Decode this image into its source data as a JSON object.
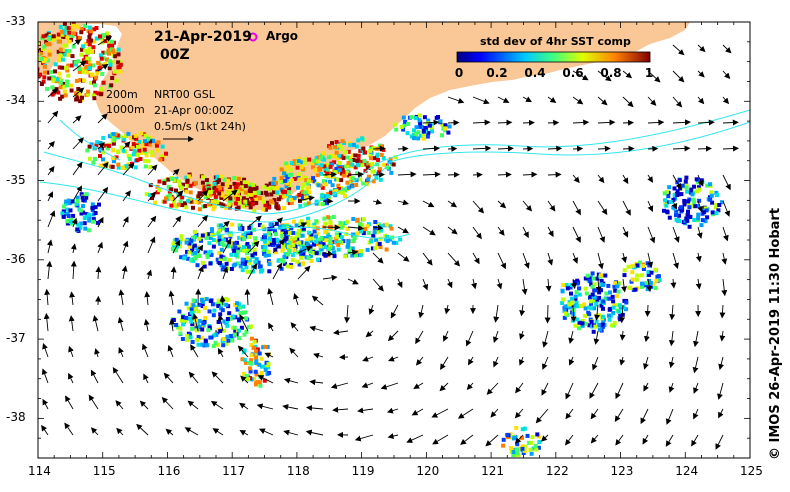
{
  "title": {
    "date": "21-Apr-2019",
    "time": "00Z"
  },
  "legend": {
    "argo_label": "Argo",
    "argo_color": "#e400e4"
  },
  "contours": {
    "depth_1": "200m",
    "depth_2": "1000m",
    "color": "#33e6f0"
  },
  "product": {
    "name": "NRT00 GSL",
    "timestamp": "21-Apr 00:00Z",
    "scale_label": "0.5m/s (1kt 24h)"
  },
  "colorbar": {
    "title": "std dev of 4hr SST comp",
    "ticks": [
      "0",
      "0.2",
      "0.4",
      "0.6",
      "0.8",
      "1"
    ]
  },
  "axes": {
    "x_ticks": [
      "114",
      "115",
      "116",
      "117",
      "118",
      "119",
      "120",
      "121",
      "122",
      "123",
      "124",
      "125"
    ],
    "y_ticks": [
      "-33",
      "-34",
      "-35",
      "-36",
      "-37",
      "-38"
    ],
    "lon_range": [
      114,
      125
    ],
    "lat_range": [
      -38.5,
      -33
    ]
  },
  "colors": {
    "land": "#fac896"
  },
  "credit": "© IMOS 26-Apr-2019 11:30 Hobart"
}
